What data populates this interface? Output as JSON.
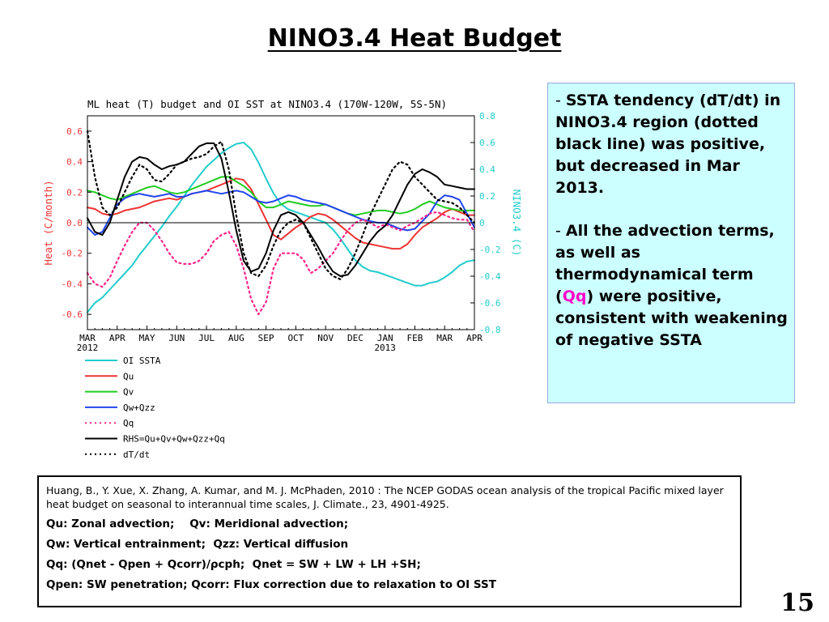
{
  "slide": {
    "title": "NINO3.4 Heat Budget",
    "page_number": "15"
  },
  "bullets": {
    "b1_dash": "- ",
    "b1": "SSTA tendency (dT/dt) in NINO3.4 region (dotted black line) was positive, but decreased in Mar 2013.",
    "b2_dash": "- ",
    "b2_pre": "All the advection terms, as well as thermodynamical term (",
    "b2_qq": "Qq",
    "b2_post": ") were positive, consistent with weakening of negative SSTA"
  },
  "reference": {
    "citation": "Huang, B., Y. Xue, X. Zhang, A. Kumar, and M. J. McPhaden, 2010 : The NCEP GODAS ocean analysis of the tropical Pacific mixed layer heat budget on seasonal to interannual time scales,  J. Climate., 23, 4901-4925.",
    "line1": "Qu: Zonal advection;    Qv: Meridional advection;",
    "line2": "Qw: Vertical entrainment;  Qzz: Vertical diffusion",
    "line3": "Qq: (Qnet - Qpen + Qcorr)/ρcph;  Qnet = SW + LW + LH +SH;",
    "line4": "Qpen: SW penetration; Qcorr: Flux correction due to relaxation to OI SST"
  },
  "colors": {
    "oi_ssta": "#22cccc",
    "qu": "#ee3333",
    "qv": "#22cc22",
    "qw_qzz": "#2244ee",
    "qq": "#ff2288",
    "rhs": "#000000",
    "dtdt": "#000000",
    "left_axis": "#ee3333",
    "right_axis": "#22cccc"
  },
  "chart_data": {
    "type": "line",
    "title": "ML heat (T) budget and OI SST at NINO3.4 (170W-120W, 5S-5N)",
    "ylabel": "Heat (C/month)",
    "y2label": "NINO3.4 (C)",
    "ylim": [
      -0.7,
      0.7
    ],
    "y2lim": [
      -0.8,
      0.8
    ],
    "yticks": [
      "0.6",
      "0.4",
      "0.2",
      "0.0",
      "-0.2",
      "-0.4",
      "-0.6"
    ],
    "y2ticks": [
      "0.8",
      "0.6",
      "0.4",
      "0.2",
      "0",
      "-0.2",
      "-0.4",
      "-0.6",
      "-0.8"
    ],
    "x_month_labels": [
      "MAR",
      "APR",
      "MAY",
      "JUN",
      "JUL",
      "AUG",
      "SEP",
      "OCT",
      "NOV",
      "DEC",
      "JAN",
      "FEB",
      "MAR",
      "APR"
    ],
    "x_year_labels": [
      {
        "index": 0,
        "label": "2012"
      },
      {
        "index": 10,
        "label": "2013"
      }
    ],
    "x_months": [
      0,
      0.25,
      0.5,
      0.75,
      1,
      1.25,
      1.5,
      1.75,
      2,
      2.25,
      2.5,
      2.75,
      3,
      3.25,
      3.5,
      3.75,
      4,
      4.25,
      4.5,
      4.75,
      5,
      5.25,
      5.5,
      5.75,
      6,
      6.25,
      6.5,
      6.75,
      7,
      7.25,
      7.5,
      7.75,
      8,
      8.25,
      8.5,
      8.75,
      9,
      9.25,
      9.5,
      9.75,
      10,
      10.25,
      10.5,
      10.75,
      11,
      11.25,
      11.5,
      11.75,
      12,
      12.25,
      12.5,
      12.75,
      13
    ],
    "series": [
      {
        "name": "OI SSTA",
        "axis": "right",
        "style": "solid",
        "values": [
          -0.67,
          -0.6,
          -0.56,
          -0.5,
          -0.44,
          -0.38,
          -0.32,
          -0.24,
          -0.17,
          -0.1,
          -0.03,
          0.05,
          0.12,
          0.2,
          0.28,
          0.35,
          0.42,
          0.47,
          0.52,
          0.56,
          0.59,
          0.6,
          0.55,
          0.45,
          0.33,
          0.22,
          0.14,
          0.1,
          0.08,
          0.06,
          0.04,
          0.02,
          0.0,
          -0.05,
          -0.12,
          -0.2,
          -0.28,
          -0.33,
          -0.36,
          -0.37,
          -0.39,
          -0.41,
          -0.43,
          -0.45,
          -0.47,
          -0.47,
          -0.45,
          -0.44,
          -0.41,
          -0.37,
          -0.32,
          -0.29,
          -0.28
        ]
      },
      {
        "name": "Qu",
        "axis": "left",
        "style": "solid",
        "values": [
          0.1,
          0.09,
          0.06,
          0.05,
          0.06,
          0.08,
          0.09,
          0.1,
          0.12,
          0.14,
          0.15,
          0.16,
          0.15,
          0.17,
          0.19,
          0.2,
          0.21,
          0.23,
          0.25,
          0.27,
          0.29,
          0.28,
          0.22,
          0.12,
          0.02,
          -0.08,
          -0.11,
          -0.07,
          -0.03,
          0.0,
          0.04,
          0.06,
          0.05,
          0.02,
          -0.02,
          -0.06,
          -0.1,
          -0.13,
          -0.14,
          -0.15,
          -0.16,
          -0.17,
          -0.17,
          -0.14,
          -0.08,
          -0.03,
          0.0,
          0.03,
          0.07,
          0.09,
          0.07,
          0.05,
          0.05
        ]
      },
      {
        "name": "Qv",
        "axis": "left",
        "style": "solid",
        "values": [
          0.21,
          0.2,
          0.18,
          0.16,
          0.15,
          0.17,
          0.19,
          0.21,
          0.23,
          0.24,
          0.22,
          0.2,
          0.19,
          0.2,
          0.22,
          0.24,
          0.26,
          0.28,
          0.3,
          0.3,
          0.27,
          0.24,
          0.2,
          0.14,
          0.1,
          0.1,
          0.12,
          0.14,
          0.13,
          0.12,
          0.11,
          0.11,
          0.12,
          0.1,
          0.08,
          0.06,
          0.05,
          0.06,
          0.07,
          0.08,
          0.08,
          0.07,
          0.06,
          0.07,
          0.09,
          0.12,
          0.14,
          0.12,
          0.1,
          0.09,
          0.08,
          0.08,
          0.08
        ]
      },
      {
        "name": "Qw+Qzz",
        "axis": "left",
        "style": "solid",
        "values": [
          -0.03,
          -0.08,
          -0.06,
          0.03,
          0.12,
          0.16,
          0.18,
          0.19,
          0.18,
          0.17,
          0.18,
          0.19,
          0.17,
          0.17,
          0.19,
          0.2,
          0.21,
          0.2,
          0.19,
          0.2,
          0.21,
          0.2,
          0.17,
          0.14,
          0.13,
          0.14,
          0.16,
          0.18,
          0.17,
          0.15,
          0.14,
          0.13,
          0.12,
          0.1,
          0.08,
          0.06,
          0.04,
          0.02,
          0.01,
          0.0,
          0.0,
          -0.02,
          -0.04,
          -0.05,
          -0.04,
          0.01,
          0.06,
          0.14,
          0.18,
          0.17,
          0.15,
          0.06,
          -0.03
        ]
      },
      {
        "name": "Qq",
        "axis": "left",
        "style": "dotted",
        "values": [
          -0.33,
          -0.4,
          -0.42,
          -0.36,
          -0.25,
          -0.15,
          -0.06,
          0.0,
          0.0,
          -0.05,
          -0.12,
          -0.2,
          -0.26,
          -0.27,
          -0.27,
          -0.25,
          -0.2,
          -0.12,
          -0.08,
          -0.06,
          -0.15,
          -0.3,
          -0.5,
          -0.6,
          -0.52,
          -0.3,
          -0.2,
          -0.2,
          -0.2,
          -0.24,
          -0.33,
          -0.3,
          -0.25,
          -0.2,
          -0.12,
          -0.05,
          0.0,
          0.02,
          0.0,
          -0.03,
          -0.01,
          -0.03,
          -0.05,
          -0.02,
          0.0,
          0.03,
          0.06,
          0.07,
          0.05,
          0.03,
          0.02,
          0.02,
          -0.06
        ]
      },
      {
        "name": "RHS=Qu+Qv+Qw+Qzz+Qq",
        "axis": "left",
        "style": "solid",
        "values": [
          0.03,
          -0.06,
          -0.08,
          0.0,
          0.15,
          0.3,
          0.4,
          0.43,
          0.42,
          0.38,
          0.35,
          0.37,
          0.38,
          0.4,
          0.45,
          0.5,
          0.52,
          0.52,
          0.42,
          0.2,
          -0.05,
          -0.25,
          -0.32,
          -0.3,
          -0.2,
          -0.05,
          0.05,
          0.07,
          0.05,
          0.0,
          -0.08,
          -0.16,
          -0.25,
          -0.32,
          -0.35,
          -0.34,
          -0.28,
          -0.2,
          -0.12,
          -0.06,
          -0.02,
          0.05,
          0.15,
          0.25,
          0.32,
          0.35,
          0.33,
          0.3,
          0.25,
          0.24,
          0.23,
          0.22,
          0.22
        ]
      },
      {
        "name": "dT/dt",
        "axis": "left",
        "style": "dotted",
        "values": [
          0.6,
          0.3,
          0.1,
          0.05,
          0.1,
          0.2,
          0.3,
          0.38,
          0.35,
          0.28,
          0.27,
          0.32,
          0.38,
          0.4,
          0.42,
          0.43,
          0.45,
          0.5,
          0.53,
          0.35,
          0.05,
          -0.2,
          -0.33,
          -0.35,
          -0.28,
          -0.15,
          -0.05,
          0.0,
          0.02,
          0.0,
          -0.1,
          -0.2,
          -0.3,
          -0.35,
          -0.37,
          -0.3,
          -0.2,
          -0.08,
          0.05,
          0.15,
          0.25,
          0.35,
          0.4,
          0.38,
          0.3,
          0.25,
          0.2,
          0.15,
          0.14,
          0.13,
          0.1,
          0.05,
          0.0
        ]
      }
    ]
  }
}
